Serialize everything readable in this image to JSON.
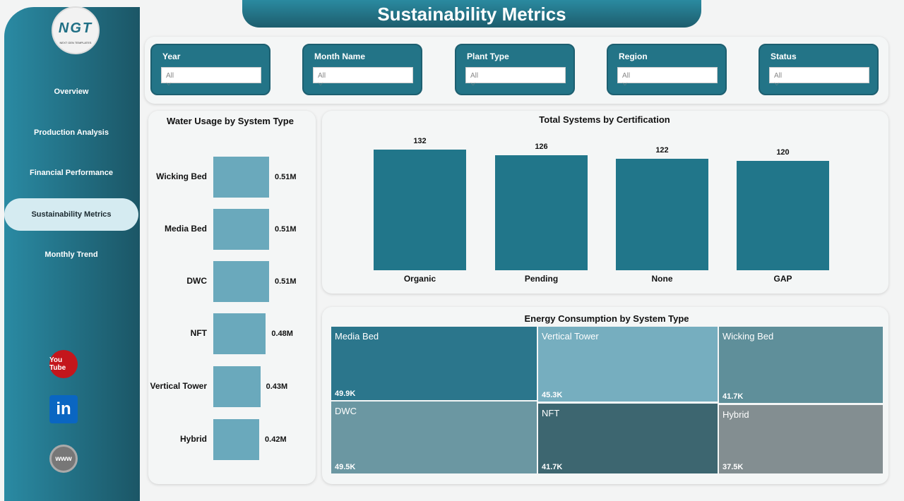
{
  "title": "Sustainability Metrics",
  "logo": {
    "text": "NGT",
    "subtitle": "NEXT GEN TEMPLATES"
  },
  "nav": [
    "Overview",
    "Production Analysis",
    "Financial Performance",
    "Sustainability Metrics",
    "Monthly Trend"
  ],
  "active_nav": "Sustainability Metrics",
  "social": [
    {
      "icon": "youtube-icon",
      "label": "You Tube",
      "color": "#c4161c"
    },
    {
      "icon": "linkedin-icon",
      "label": "in",
      "color": "#0a66c2"
    },
    {
      "icon": "globe-icon",
      "label": "www",
      "color": "#777777"
    }
  ],
  "filters": [
    {
      "label": "Year",
      "value": "All"
    },
    {
      "label": "Month Name",
      "value": "All"
    },
    {
      "label": "Plant Type",
      "value": "All"
    },
    {
      "label": "Region",
      "value": "All"
    },
    {
      "label": "Status",
      "value": "All"
    }
  ],
  "chart_data": [
    {
      "type": "bar",
      "orientation": "horizontal",
      "title": "Water Usage by System Type",
      "categories": [
        "Wicking Bed",
        "Media Bed",
        "DWC",
        "NFT",
        "Vertical Tower",
        "Hybrid"
      ],
      "values": [
        0.51,
        0.51,
        0.51,
        0.48,
        0.43,
        0.42
      ],
      "labels": [
        "0.51M",
        "0.51M",
        "0.51M",
        "0.48M",
        "0.43M",
        "0.42M"
      ],
      "color": "#6aa9bc"
    },
    {
      "type": "bar",
      "title": "Total Systems by Certification",
      "categories": [
        "Organic",
        "Pending",
        "None",
        "GAP"
      ],
      "values": [
        132,
        126,
        122,
        120
      ],
      "color": "#21768a"
    },
    {
      "type": "treemap",
      "title": "Energy Consumption by System Type",
      "items": [
        {
          "name": "Media Bed",
          "label": "49.9K",
          "value": 49.9,
          "color": "#2b768c"
        },
        {
          "name": "DWC",
          "label": "49.5K",
          "value": 49.5,
          "color": "#6b97a2"
        },
        {
          "name": "Vertical Tower",
          "label": "45.3K",
          "value": 45.3,
          "color": "#76aebf"
        },
        {
          "name": "NFT",
          "label": "41.7K",
          "value": 41.7,
          "color": "#3d6670"
        },
        {
          "name": "Wicking Bed",
          "label": "41.7K",
          "value": 41.7,
          "color": "#5f8f9a"
        },
        {
          "name": "Hybrid",
          "label": "37.5K",
          "value": 37.5,
          "color": "#838e91"
        }
      ]
    }
  ]
}
